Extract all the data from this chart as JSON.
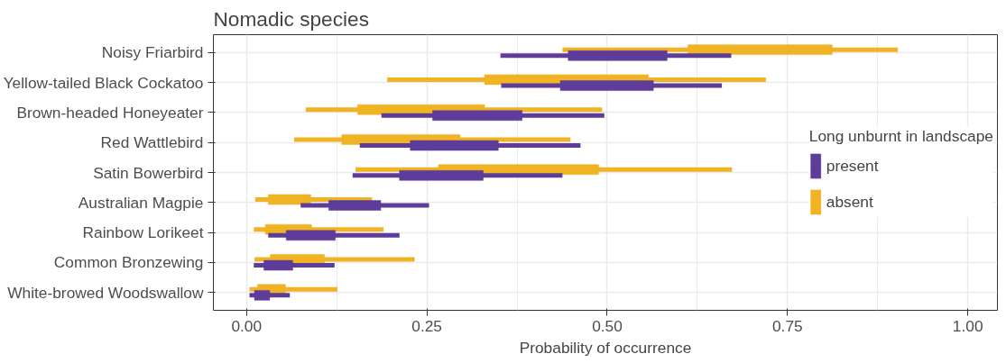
{
  "chart_data": {
    "type": "bar",
    "orientation": "horizontal",
    "title": "Nomadic species",
    "xlabel": "Probability of occurrence",
    "legend_title": "Long unburnt in landscape",
    "legend": "right",
    "grid": true,
    "categories": [
      "Noisy Friarbird",
      "Yellow-tailed Black Cockatoo",
      "Brown-headed Honeyeater",
      "Red Wattlebird",
      "Satin Bowerbird",
      "Australian Magpie",
      "Rainbow Lorikeet",
      "Common Bronzewing",
      "White-browed Woodswallow"
    ],
    "xlim": [
      -0.046,
      1.041
    ],
    "xticks": [
      {
        "value": 0,
        "label": "0.00"
      },
      {
        "value": 0.25,
        "label": "0.25"
      },
      {
        "value": 0.5,
        "label": "0.50"
      },
      {
        "value": 0.75,
        "label": "0.75"
      },
      {
        "value": 1,
        "label": "1.00"
      }
    ],
    "series": [
      {
        "name": "present",
        "color": "#5e3c99",
        "base": [
          0.446,
          0.435,
          0.258,
          0.227,
          0.212,
          0.114,
          0.055,
          0.024,
          0.011
        ],
        "values": [
          0.137,
          0.129,
          0.124,
          0.122,
          0.116,
          0.072,
          0.068,
          0.04,
          0.021
        ],
        "errors": [
          [
            0.352,
            0.672
          ],
          [
            0.353,
            0.659
          ],
          [
            0.187,
            0.496
          ],
          [
            0.157,
            0.463
          ],
          [
            0.147,
            0.438
          ],
          [
            0.075,
            0.253
          ],
          [
            0.03,
            0.212
          ],
          [
            0.01,
            0.122
          ],
          [
            0.004,
            0.06
          ]
        ]
      },
      {
        "name": "absent",
        "color": "#f0b323",
        "base": [
          0.612,
          0.33,
          0.154,
          0.132,
          0.266,
          0.03,
          0.026,
          0.033,
          0.015
        ],
        "values": [
          0.2,
          0.227,
          0.176,
          0.164,
          0.222,
          0.059,
          0.064,
          0.075,
          0.039
        ],
        "errors": [
          [
            0.438,
            0.903
          ],
          [
            0.195,
            0.72
          ],
          [
            0.082,
            0.493
          ],
          [
            0.066,
            0.449
          ],
          [
            0.151,
            0.673
          ],
          [
            0.012,
            0.174
          ],
          [
            0.01,
            0.19
          ],
          [
            0.011,
            0.233
          ],
          [
            0.004,
            0.126
          ]
        ]
      }
    ]
  }
}
